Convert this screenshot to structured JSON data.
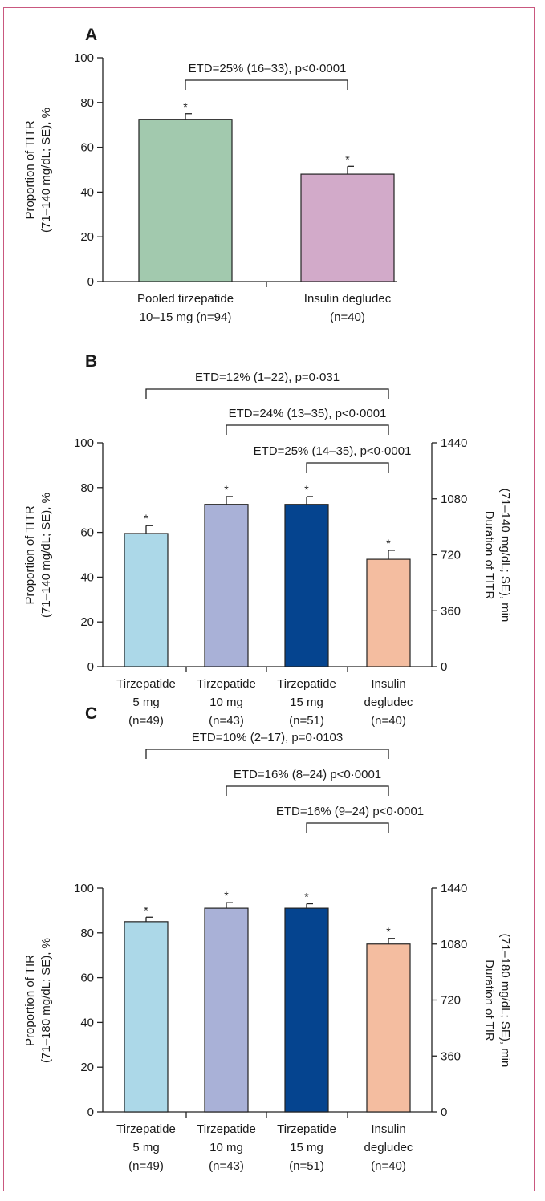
{
  "colors": {
    "frame": "#c9587f",
    "pooled": "#a2c9ae",
    "degludecA": "#d2aac9",
    "tzp5": "#acd8e8",
    "tzp10": "#a9b1d7",
    "tzp15": "#05448f",
    "degludec": "#f4bda0"
  },
  "chart_data": [
    {
      "panel": "A",
      "type": "bar",
      "ylabel_lines": [
        "Proportion of TITR",
        "(71–140 mg/dL; SE), %"
      ],
      "ylim": [
        0,
        100
      ],
      "yticks": [
        0,
        20,
        40,
        60,
        80,
        100
      ],
      "categories": [
        {
          "lines": [
            "Pooled tirzepatide",
            "10–15 mg (n=94)"
          ]
        },
        {
          "lines": [
            "Insulin degludec",
            "(n=40)"
          ]
        }
      ],
      "values": [
        72.5,
        48
      ],
      "errors": [
        2.5,
        3.5
      ],
      "colors": [
        "#a2c9ae",
        "#d2aac9"
      ],
      "markers": [
        "*",
        "*"
      ],
      "comparisons": [
        {
          "label": "ETD=25% (16–33), p<0·0001",
          "from": 0,
          "to": 1
        }
      ]
    },
    {
      "panel": "B",
      "type": "bar",
      "ylabel_lines": [
        "Proportion of TITR",
        "(71–140 mg/dL; SE), %"
      ],
      "ylim": [
        0,
        100
      ],
      "yticks": [
        0,
        20,
        40,
        60,
        80,
        100
      ],
      "y2label_lines": [
        "Duration of TITR",
        "(71–140 mg/dL; SE), min"
      ],
      "y2lim": [
        0,
        1440
      ],
      "y2ticks": [
        0,
        360,
        720,
        1080,
        1440
      ],
      "categories": [
        {
          "lines": [
            "Tirzepatide",
            "5 mg",
            "(n=49)"
          ]
        },
        {
          "lines": [
            "Tirzepatide",
            "10 mg",
            "(n=43)"
          ]
        },
        {
          "lines": [
            "Tirzepatide",
            "15 mg",
            "(n=51)"
          ]
        },
        {
          "lines": [
            "Insulin",
            "degludec",
            "(n=40)"
          ]
        }
      ],
      "values": [
        59.5,
        72.5,
        72.5,
        48
      ],
      "errors": [
        3.5,
        3.5,
        3.5,
        4
      ],
      "colors": [
        "#acd8e8",
        "#a9b1d7",
        "#05448f",
        "#f4bda0"
      ],
      "markers": [
        "*",
        "*",
        "*",
        "*"
      ],
      "comparisons": [
        {
          "label": "ETD=12% (1–22), p=0·031",
          "from": 0,
          "to": 3
        },
        {
          "label": "ETD=24% (13–35), p<0·0001",
          "from": 1,
          "to": 3
        },
        {
          "label": "ETD=25% (14–35), p<0·0001",
          "from": 2,
          "to": 3
        }
      ]
    },
    {
      "panel": "C",
      "type": "bar",
      "ylabel_lines": [
        "Proportion of TIR",
        "(71–180 mg/dL; SE), %"
      ],
      "ylim": [
        0,
        100
      ],
      "yticks": [
        0,
        20,
        40,
        60,
        80,
        100
      ],
      "y2label_lines": [
        "Duration of TIR",
        "(71–180 mg/dL; SE), min"
      ],
      "y2lim": [
        0,
        1440
      ],
      "y2ticks": [
        0,
        360,
        720,
        1080,
        1440
      ],
      "categories": [
        {
          "lines": [
            "Tirzepatide",
            "5 mg",
            "(n=49)"
          ]
        },
        {
          "lines": [
            "Tirzepatide",
            "10 mg",
            "(n=43)"
          ]
        },
        {
          "lines": [
            "Tirzepatide",
            "15 mg",
            "(n=51)"
          ]
        },
        {
          "lines": [
            "Insulin",
            "degludec",
            "(n=40)"
          ]
        }
      ],
      "values": [
        85,
        91,
        91,
        75
      ],
      "errors": [
        2,
        2.5,
        2,
        2.5
      ],
      "colors": [
        "#acd8e8",
        "#a9b1d7",
        "#05448f",
        "#f4bda0"
      ],
      "markers": [
        "*",
        "*",
        "*",
        "*"
      ],
      "comparisons": [
        {
          "label": "ETD=10% (2–17), p=0·0103",
          "from": 0,
          "to": 3
        },
        {
          "label": "ETD=16% (8–24) p<0·0001",
          "from": 1,
          "to": 3
        },
        {
          "label": "ETD=16% (9–24) p<0·0001",
          "from": 2,
          "to": 3
        }
      ]
    }
  ]
}
